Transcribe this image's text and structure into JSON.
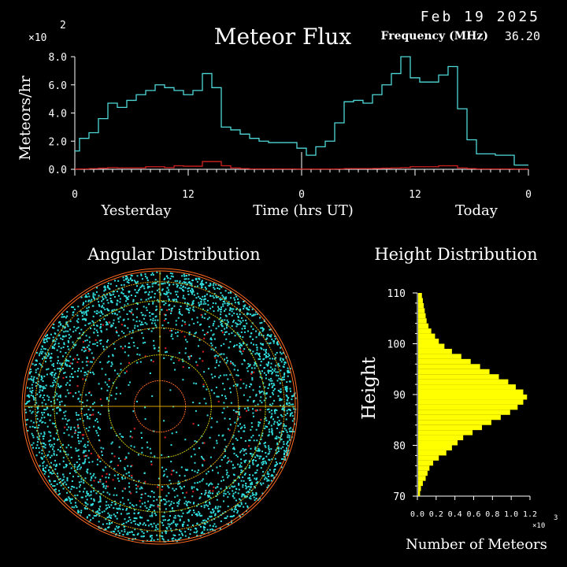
{
  "header": {
    "date": "Feb 19 2025",
    "frequency_label": "Frequency (MHz)",
    "frequency_value": "36.20"
  },
  "colors": {
    "flux_series": "#4fd8d8",
    "reference_series": "#d02020",
    "axis": "#ffffff",
    "polar_points": "#33e0e0",
    "polar_points_secondary": "#e02020",
    "polar_grid_a": "#d8a000",
    "polar_grid_b": "#ff6a20",
    "polar_grid_c": "#c8c800",
    "height_bars": "#ffff00"
  },
  "chart_data": [
    {
      "type": "line",
      "title": "Meteor Flux",
      "xlabel": "Time (hrs UT)",
      "ylabel": "Meteors/hr",
      "y_multiplier": "×10",
      "y_exponent": "2",
      "ylim": [
        0,
        8.0
      ],
      "yticks": [
        "0.0",
        "2.0",
        "4.0",
        "6.0",
        "8.0"
      ],
      "xticks": [
        {
          "hour": 0,
          "label": "0"
        },
        {
          "hour": 12,
          "label": "12"
        },
        {
          "hour": 24,
          "label": "0"
        },
        {
          "hour": 36,
          "label": "12"
        },
        {
          "hour": 48,
          "label": "0"
        }
      ],
      "x_range_hours": [
        0,
        48
      ],
      "day_labels": [
        {
          "label": "Yesterday",
          "hour": 6.5
        },
        {
          "label": "Today",
          "hour": 42.5
        }
      ],
      "step": "hourly",
      "series": [
        {
          "values": [
            1.3,
            2.2,
            2.6,
            3.6,
            4.7,
            4.4,
            4.9,
            5.3,
            5.6,
            6.0,
            5.8,
            5.6,
            5.3,
            5.6,
            6.8,
            5.8,
            3.0,
            2.8,
            2.5,
            2.2,
            2.0,
            1.9,
            1.9,
            1.9,
            1.5,
            1.0,
            1.6,
            2.0,
            3.3,
            4.8,
            4.9,
            4.7,
            5.3,
            6.0,
            6.8,
            8.0,
            6.5,
            6.2,
            6.2,
            6.7,
            7.3,
            4.3,
            2.1,
            1.1,
            1.1,
            1.0,
            1.0,
            0.3,
            0.3
          ]
        },
        {
          "values": [
            0.02,
            0.03,
            0.05,
            0.08,
            0.12,
            0.1,
            0.1,
            0.1,
            0.18,
            0.18,
            0.12,
            0.25,
            0.22,
            0.22,
            0.55,
            0.55,
            0.25,
            0.1,
            0.05,
            0.03,
            0.03,
            0.03,
            0.03,
            0.03,
            0.02,
            0.02,
            0.02,
            0.02,
            0.03,
            0.05,
            0.05,
            0.05,
            0.06,
            0.08,
            0.1,
            0.12,
            0.18,
            0.18,
            0.18,
            0.25,
            0.25,
            0.1,
            0.05,
            0.03,
            0.03,
            0.03,
            0.03,
            0.02,
            0.02
          ]
        }
      ]
    },
    {
      "type": "scatter",
      "title": "Angular Distribution",
      "projection": "polar",
      "grid": true
    },
    {
      "type": "bar",
      "orientation": "horizontal",
      "title": "Height Distribution",
      "ylabel": "Height",
      "xlabel": "Number of Meteors",
      "x_multiplier": "×10",
      "x_exponent": "3",
      "ylim": [
        70,
        110
      ],
      "yticks": [
        "70",
        "80",
        "90",
        "100",
        "110"
      ],
      "xlim": [
        0,
        1.2
      ],
      "xticks": [
        "0.0",
        "0.2",
        "0.4",
        "0.6",
        "0.8",
        "1.0",
        "1.2"
      ],
      "bin_km": 1,
      "heights": [
        70,
        71,
        72,
        73,
        74,
        75,
        76,
        77,
        78,
        79,
        80,
        81,
        82,
        83,
        84,
        85,
        86,
        87,
        88,
        89,
        90,
        91,
        92,
        93,
        94,
        95,
        96,
        97,
        98,
        99,
        100,
        101,
        102,
        103,
        104,
        105,
        106,
        107,
        108,
        109
      ],
      "values": [
        0.02,
        0.03,
        0.05,
        0.08,
        0.1,
        0.12,
        0.16,
        0.22,
        0.3,
        0.36,
        0.42,
        0.48,
        0.58,
        0.68,
        0.78,
        0.88,
        0.98,
        1.06,
        1.12,
        1.16,
        1.12,
        1.04,
        0.96,
        0.86,
        0.76,
        0.66,
        0.56,
        0.46,
        0.36,
        0.28,
        0.22,
        0.18,
        0.14,
        0.11,
        0.09,
        0.08,
        0.07,
        0.06,
        0.05,
        0.04
      ]
    }
  ]
}
